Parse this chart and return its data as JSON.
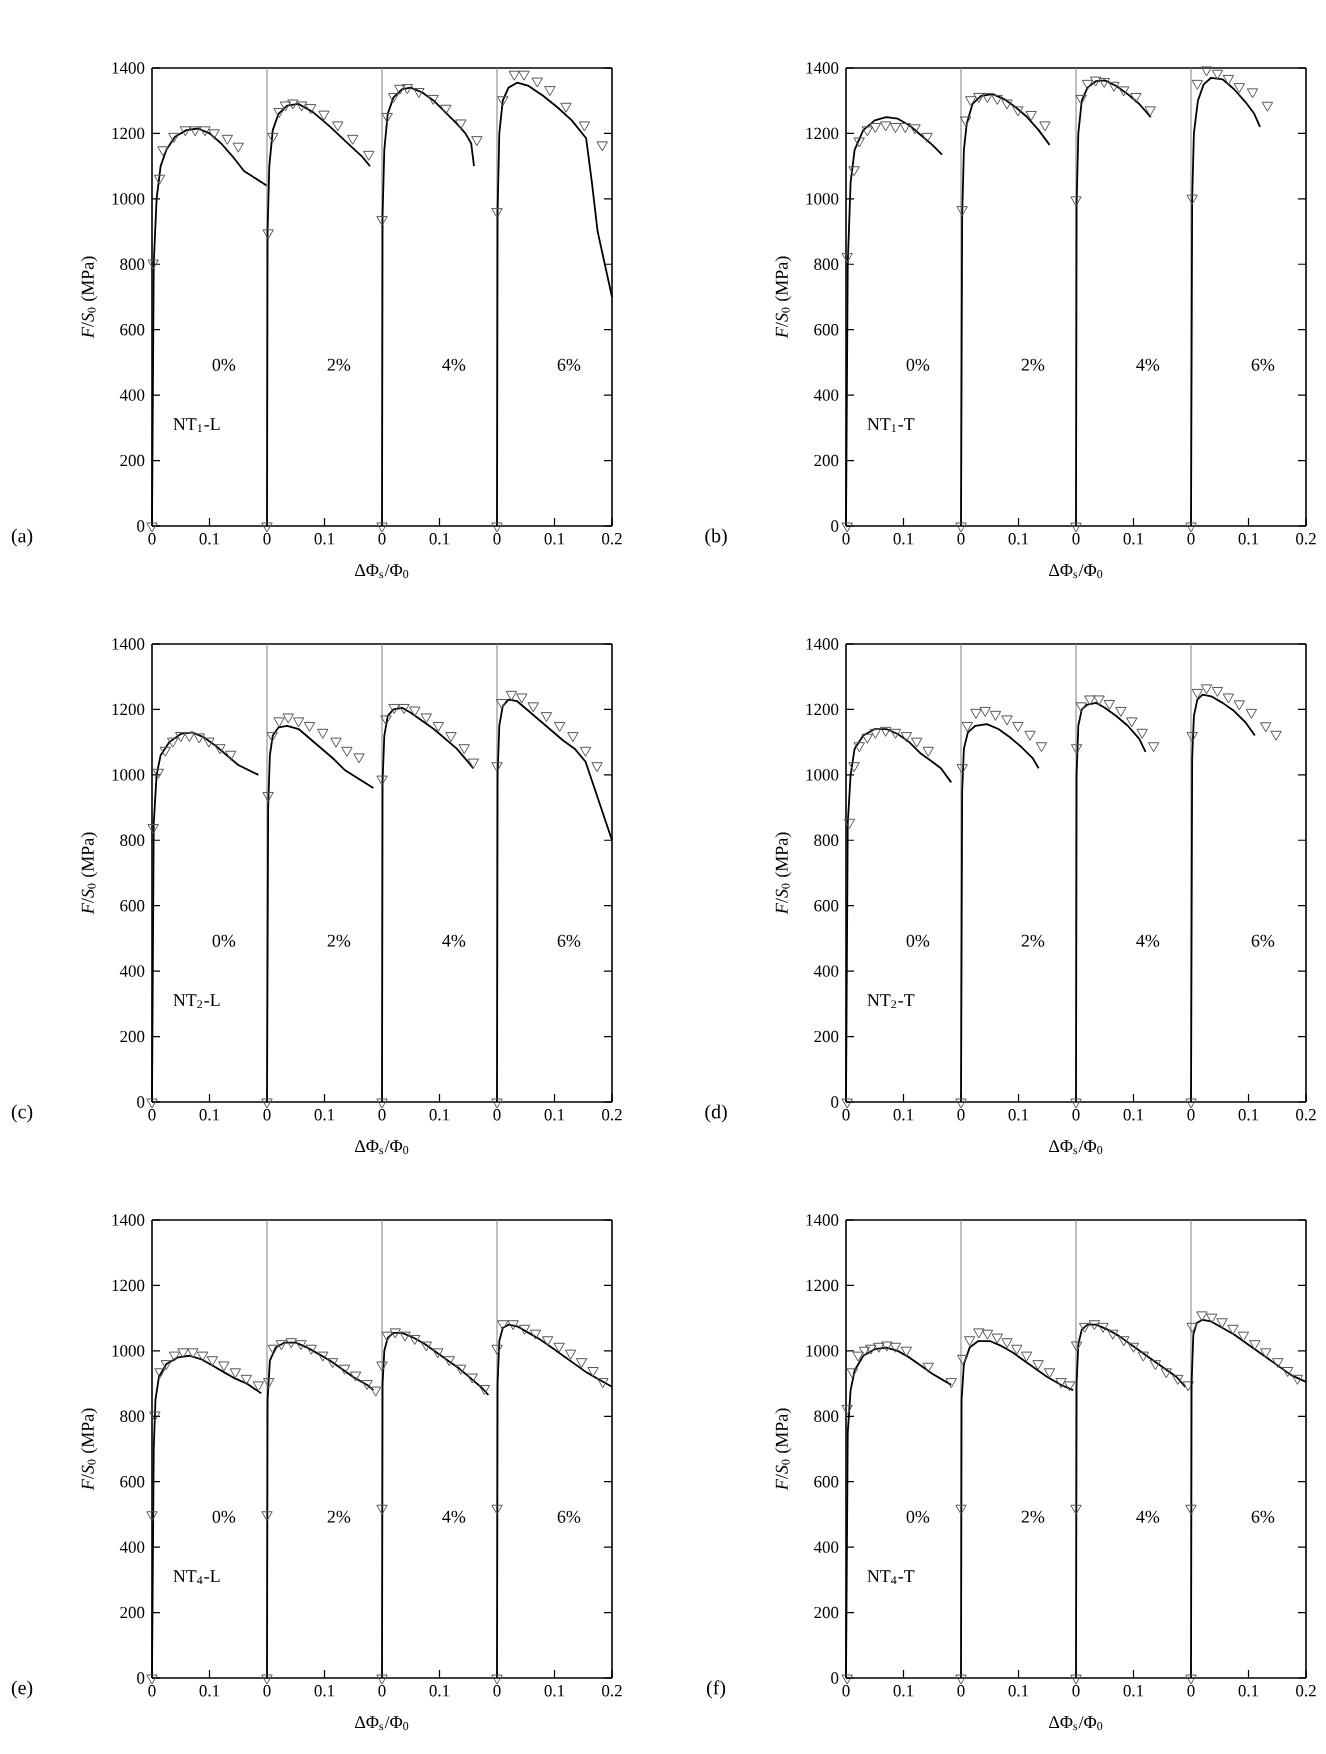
{
  "chart_data": [
    {
      "type": "line",
      "ylabel": "*F*/*S*$_{0}$ (MPa)",
      "annotations": [
        "(a)",
        "NT$_{1}$-L",
        "0%"
      ],
      "xlim": [
        0,
        0.2
      ],
      "ylim": [
        0,
        1400
      ],
      "xticks": [
        0,
        0.1
      ],
      "yticks": [
        0,
        200,
        400,
        600,
        800,
        1000,
        1200,
        1400
      ],
      "series": [
        {
          "color": "#000000",
          "x": [
            0,
            0.003,
            0.008,
            0.015,
            0.025,
            0.04,
            0.06,
            0.08,
            0.1,
            0.12,
            0.14,
            0.16,
            0.2
          ],
          "values": [
            0,
            800,
            1000,
            1100,
            1150,
            1190,
            1210,
            1215,
            1200,
            1170,
            1130,
            1085,
            1040
          ]
        },
        {
          "type": "scatter",
          "color": "#555555",
          "marker": "triangle",
          "x": [
            0,
            0.002,
            0.013,
            0.019,
            0.038,
            0.058,
            0.075,
            0.092,
            0.108,
            0.131,
            0.15
          ],
          "values": [
            0,
            804,
            1063,
            1150,
            1191,
            1211,
            1211,
            1211,
            1202,
            1185,
            1161
          ]
        }
      ]
    },
    {
      "type": "line",
      "xlabel": "ΔΦ$_{s}$/Φ$_{0}$",
      "annotations": [
        "2%"
      ],
      "xlim": [
        0,
        0.2
      ],
      "ylim": [
        0,
        1400
      ],
      "xticks": [
        0,
        0.1
      ],
      "tick_labels": "x",
      "series": [
        {
          "color": "#000000",
          "x": [
            0,
            0.001,
            0.004,
            0.01,
            0.02,
            0.035,
            0.055,
            0.08,
            0.11,
            0.14,
            0.165,
            0.179
          ],
          "values": [
            0,
            900,
            1100,
            1210,
            1260,
            1285,
            1290,
            1265,
            1220,
            1170,
            1130,
            1100
          ]
        },
        {
          "type": "scatter",
          "color": "#555555",
          "marker": "triangle",
          "x": [
            0,
            0.002,
            0.01,
            0.021,
            0.032,
            0.045,
            0.06,
            0.076,
            0.099,
            0.123,
            0.149,
            0.177
          ],
          "values": [
            0,
            896,
            1191,
            1267,
            1287,
            1293,
            1287,
            1279,
            1259,
            1226,
            1185,
            1136
          ]
        }
      ]
    },
    {
      "type": "line",
      "annotations": [
        "4%"
      ],
      "xlim": [
        0,
        0.2
      ],
      "ylim": [
        0,
        1400
      ],
      "xticks": [
        0,
        0.1
      ],
      "tick_labels": "x",
      "series": [
        {
          "color": "#000000",
          "x": [
            0,
            0.001,
            0.004,
            0.01,
            0.02,
            0.035,
            0.05,
            0.07,
            0.09,
            0.11,
            0.13,
            0.145,
            0.155,
            0.16
          ],
          "values": [
            0,
            950,
            1150,
            1260,
            1310,
            1335,
            1340,
            1325,
            1300,
            1265,
            1230,
            1200,
            1170,
            1100
          ]
        },
        {
          "type": "scatter",
          "color": "#555555",
          "marker": "triangle",
          "x": [
            0,
            0,
            0.009,
            0.02,
            0.031,
            0.044,
            0.064,
            0.089,
            0.111,
            0.137,
            0.165
          ],
          "values": [
            0,
            937,
            1252,
            1313,
            1338,
            1340,
            1328,
            1307,
            1277,
            1232,
            1181
          ]
        }
      ]
    },
    {
      "type": "line",
      "annotations": [
        "6%"
      ],
      "xlim": [
        0,
        0.2
      ],
      "ylim": [
        0,
        1400
      ],
      "xticks": [
        0,
        0.1,
        0.2
      ],
      "tick_labels": "x",
      "yticks": [
        {
          "value": 0,
          "label": null
        },
        {
          "value": 200,
          "label": null
        },
        {
          "value": 400,
          "label": null
        },
        {
          "value": 600,
          "label": null
        },
        {
          "value": 800,
          "label": null
        },
        {
          "value": 1000,
          "label": null
        },
        {
          "value": 1200,
          "label": null
        },
        {
          "value": 1400,
          "label": null
        }
      ],
      "series": [
        {
          "color": "#000000",
          "x": [
            0,
            0.001,
            0.004,
            0.01,
            0.02,
            0.035,
            0.055,
            0.08,
            0.105,
            0.13,
            0.155,
            0.165,
            0.175,
            0.2
          ],
          "values": [
            0,
            960,
            1200,
            1300,
            1340,
            1355,
            1345,
            1315,
            1280,
            1240,
            1185,
            1050,
            900,
            700
          ]
        },
        {
          "type": "scatter",
          "color": "#555555",
          "marker": "triangle",
          "x": [
            0,
            0,
            0.01,
            0.03,
            0.047,
            0.07,
            0.092,
            0.12,
            0.152,
            0.183
          ],
          "values": [
            0,
            961,
            1303,
            1381,
            1381,
            1360,
            1334,
            1283,
            1226,
            1165
          ]
        }
      ]
    },
    {
      "type": "line",
      "ylabel": "*F*/*S*$_{0}$ (MPa)",
      "annotations": [
        "(b)",
        "NT$_{1}$-T",
        "0%"
      ],
      "xlim": [
        0,
        0.2
      ],
      "ylim": [
        0,
        1400
      ],
      "xticks": [
        0,
        0.1
      ],
      "yticks": [
        0,
        200,
        400,
        600,
        800,
        1000,
        1200,
        1400
      ],
      "series": [
        {
          "color": "#000000",
          "x": [
            0,
            0.003,
            0.008,
            0.015,
            0.03,
            0.05,
            0.07,
            0.09,
            0.11,
            0.13,
            0.15,
            0.167
          ],
          "values": [
            0,
            800,
            1050,
            1150,
            1210,
            1240,
            1250,
            1245,
            1225,
            1195,
            1165,
            1135
          ]
        },
        {
          "type": "scatter",
          "color": "#555555",
          "marker": "triangle",
          "x": [
            0.002,
            0.002,
            0.014,
            0.023,
            0.037,
            0.051,
            0.069,
            0.086,
            0.103,
            0.12,
            0.141
          ],
          "values": [
            0,
            824,
            1089,
            1177,
            1211,
            1221,
            1226,
            1221,
            1221,
            1217,
            1191
          ]
        }
      ]
    },
    {
      "type": "line",
      "xlabel": "ΔΦ$_{s}$/Φ$_{0}$",
      "annotations": [
        "2%"
      ],
      "xlim": [
        0,
        0.2
      ],
      "ylim": [
        0,
        1400
      ],
      "xticks": [
        0,
        0.1
      ],
      "tick_labels": "x",
      "series": [
        {
          "color": "#000000",
          "x": [
            0,
            0.002,
            0.005,
            0.01,
            0.02,
            0.035,
            0.055,
            0.075,
            0.095,
            0.115,
            0.135,
            0.154
          ],
          "values": [
            0,
            950,
            1150,
            1230,
            1290,
            1315,
            1320,
            1305,
            1280,
            1250,
            1210,
            1165
          ]
        },
        {
          "type": "scatter",
          "color": "#555555",
          "marker": "triangle",
          "x": [
            0,
            0.002,
            0.008,
            0.017,
            0.031,
            0.046,
            0.063,
            0.08,
            0.099,
            0.122,
            0.146
          ],
          "values": [
            0,
            967,
            1241,
            1303,
            1313,
            1313,
            1307,
            1293,
            1272,
            1258,
            1226
          ]
        }
      ]
    },
    {
      "type": "line",
      "annotations": [
        "4%"
      ],
      "xlim": [
        0,
        0.2
      ],
      "ylim": [
        0,
        1400
      ],
      "xticks": [
        0,
        0.1
      ],
      "tick_labels": "x",
      "series": [
        {
          "color": "#000000",
          "x": [
            0,
            0.001,
            0.004,
            0.01,
            0.02,
            0.035,
            0.05,
            0.07,
            0.09,
            0.11,
            0.13
          ],
          "values": [
            0,
            980,
            1200,
            1300,
            1340,
            1360,
            1362,
            1345,
            1320,
            1290,
            1250
          ]
        },
        {
          "type": "scatter",
          "color": "#555555",
          "marker": "triangle",
          "x": [
            0,
            0,
            0.009,
            0.02,
            0.034,
            0.049,
            0.066,
            0.083,
            0.104,
            0.129
          ],
          "values": [
            0,
            997,
            1307,
            1353,
            1363,
            1359,
            1347,
            1333,
            1313,
            1272
          ]
        }
      ]
    },
    {
      "type": "line",
      "annotations": [
        "6%"
      ],
      "xlim": [
        0,
        0.2
      ],
      "ylim": [
        0,
        1400
      ],
      "xticks": [
        0,
        0.1,
        0.2
      ],
      "tick_labels": "x",
      "yticks": [
        {
          "value": 0,
          "label": null
        },
        {
          "value": 200,
          "label": null
        },
        {
          "value": 400,
          "label": null
        },
        {
          "value": 600,
          "label": null
        },
        {
          "value": 800,
          "label": null
        },
        {
          "value": 1000,
          "label": null
        },
        {
          "value": 1200,
          "label": null
        },
        {
          "value": 1400,
          "label": null
        }
      ],
      "series": [
        {
          "color": "#000000",
          "x": [
            0,
            0.002,
            0.005,
            0.012,
            0.022,
            0.035,
            0.055,
            0.075,
            0.095,
            0.11,
            0.12
          ],
          "values": [
            0,
            1000,
            1200,
            1300,
            1350,
            1370,
            1365,
            1335,
            1295,
            1260,
            1220
          ]
        },
        {
          "type": "scatter",
          "color": "#555555",
          "marker": "triangle",
          "x": [
            0,
            0.002,
            0.011,
            0.027,
            0.046,
            0.065,
            0.084,
            0.107,
            0.133
          ],
          "values": [
            0,
            1002,
            1353,
            1394,
            1384,
            1368,
            1343,
            1327,
            1286
          ]
        }
      ]
    },
    {
      "type": "line",
      "ylabel": "*F*/*S*$_{0}$ (MPa)",
      "annotations": [
        "(c)",
        "NT$_{2}$-L",
        "0%"
      ],
      "xlim": [
        0,
        0.2
      ],
      "ylim": [
        0,
        1400
      ],
      "xticks": [
        0,
        0.1
      ],
      "yticks": [
        0,
        200,
        400,
        600,
        800,
        1000,
        1200,
        1400
      ],
      "series": [
        {
          "color": "#000000",
          "x": [
            0,
            0.003,
            0.008,
            0.015,
            0.03,
            0.05,
            0.07,
            0.09,
            0.11,
            0.13,
            0.15,
            0.185
          ],
          "values": [
            0,
            850,
            1000,
            1060,
            1100,
            1125,
            1130,
            1115,
            1090,
            1060,
            1030,
            1000
          ]
        },
        {
          "type": "scatter",
          "color": "#555555",
          "marker": "triangle",
          "x": [
            0,
            0.002,
            0.011,
            0.023,
            0.036,
            0.05,
            0.065,
            0.082,
            0.099,
            0.118,
            0.137
          ],
          "values": [
            0,
            839,
            1008,
            1075,
            1103,
            1120,
            1120,
            1116,
            1103,
            1083,
            1063
          ]
        }
      ]
    },
    {
      "type": "line",
      "xlabel": "ΔΦ$_{s}$/Φ$_{0}$",
      "annotations": [
        "2%"
      ],
      "xlim": [
        0,
        0.2
      ],
      "ylim": [
        0,
        1400
      ],
      "xticks": [
        0,
        0.1
      ],
      "tick_labels": "x",
      "series": [
        {
          "color": "#000000",
          "x": [
            0,
            0.002,
            0.005,
            0.01,
            0.02,
            0.035,
            0.055,
            0.075,
            0.095,
            0.115,
            0.135,
            0.185
          ],
          "values": [
            0,
            900,
            1060,
            1120,
            1145,
            1150,
            1140,
            1110,
            1080,
            1050,
            1015,
            960
          ]
        },
        {
          "type": "scatter",
          "color": "#555555",
          "marker": "triangle",
          "x": [
            0,
            0.002,
            0.009,
            0.021,
            0.037,
            0.055,
            0.074,
            0.097,
            0.12,
            0.139,
            0.16
          ],
          "values": [
            0,
            937,
            1120,
            1165,
            1177,
            1165,
            1151,
            1130,
            1103,
            1075,
            1055
          ]
        }
      ]
    },
    {
      "type": "line",
      "annotations": [
        "4%"
      ],
      "xlim": [
        0,
        0.2
      ],
      "ylim": [
        0,
        1400
      ],
      "xticks": [
        0,
        0.1
      ],
      "tick_labels": "x",
      "series": [
        {
          "color": "#000000",
          "x": [
            0,
            0.001,
            0.004,
            0.01,
            0.02,
            0.035,
            0.05,
            0.07,
            0.09,
            0.11,
            0.13,
            0.159
          ],
          "values": [
            0,
            980,
            1120,
            1180,
            1200,
            1205,
            1190,
            1165,
            1140,
            1110,
            1080,
            1020
          ]
        },
        {
          "type": "scatter",
          "color": "#555555",
          "marker": "triangle",
          "x": [
            0,
            0,
            0.007,
            0.021,
            0.038,
            0.057,
            0.077,
            0.098,
            0.12,
            0.143,
            0.159
          ],
          "values": [
            0,
            987,
            1171,
            1206,
            1206,
            1198,
            1177,
            1151,
            1120,
            1083,
            1039
          ]
        }
      ]
    },
    {
      "type": "line",
      "annotations": [
        "6%"
      ],
      "xlim": [
        0,
        0.2
      ],
      "ylim": [
        0,
        1400
      ],
      "xticks": [
        0,
        0.1,
        0.2
      ],
      "tick_labels": "x",
      "yticks": [
        {
          "value": 0,
          "label": null
        },
        {
          "value": 200,
          "label": null
        },
        {
          "value": 400,
          "label": null
        },
        {
          "value": 600,
          "label": null
        },
        {
          "value": 800,
          "label": null
        },
        {
          "value": 1000,
          "label": null
        },
        {
          "value": 1200,
          "label": null
        },
        {
          "value": 1400,
          "label": null
        }
      ],
      "series": [
        {
          "color": "#000000",
          "x": [
            0,
            0.001,
            0.004,
            0.01,
            0.02,
            0.035,
            0.055,
            0.075,
            0.095,
            0.115,
            0.135,
            0.154,
            0.2
          ],
          "values": [
            0,
            1000,
            1150,
            1210,
            1230,
            1225,
            1195,
            1165,
            1135,
            1105,
            1080,
            1040,
            800
          ]
        },
        {
          "type": "scatter",
          "color": "#555555",
          "marker": "triangle",
          "x": [
            0,
            0,
            0.008,
            0.025,
            0.043,
            0.063,
            0.086,
            0.109,
            0.132,
            0.154,
            0.174
          ],
          "values": [
            0,
            1028,
            1221,
            1246,
            1238,
            1211,
            1181,
            1151,
            1120,
            1075,
            1028
          ]
        }
      ]
    },
    {
      "type": "line",
      "ylabel": "*F*/*S*$_{0}$ (MPa)",
      "annotations": [
        "(d)",
        "NT$_{2}$-T",
        "0%"
      ],
      "xlim": [
        0,
        0.2
      ],
      "ylim": [
        0,
        1400
      ],
      "xticks": [
        0,
        0.1
      ],
      "yticks": [
        0,
        200,
        400,
        600,
        800,
        1000,
        1200,
        1400
      ],
      "series": [
        {
          "color": "#000000",
          "x": [
            0,
            0.003,
            0.008,
            0.015,
            0.03,
            0.05,
            0.07,
            0.09,
            0.11,
            0.13,
            0.15,
            0.165,
            0.183
          ],
          "values": [
            0,
            850,
            1000,
            1080,
            1120,
            1140,
            1140,
            1125,
            1100,
            1065,
            1040,
            1020,
            977
          ]
        },
        {
          "type": "scatter",
          "color": "#555555",
          "marker": "triangle",
          "x": [
            0.002,
            0.006,
            0.014,
            0.023,
            0.037,
            0.051,
            0.069,
            0.086,
            0.105,
            0.123,
            0.143
          ],
          "values": [
            0,
            855,
            1028,
            1089,
            1115,
            1130,
            1136,
            1130,
            1120,
            1103,
            1075
          ]
        }
      ]
    },
    {
      "type": "line",
      "xlabel": "ΔΦ$_{s}$/Φ$_{0}$",
      "annotations": [
        "2%"
      ],
      "xlim": [
        0,
        0.2
      ],
      "ylim": [
        0,
        1400
      ],
      "xticks": [
        0,
        0.1
      ],
      "tick_labels": "x",
      "series": [
        {
          "color": "#000000",
          "x": [
            0,
            0.002,
            0.005,
            0.012,
            0.025,
            0.045,
            0.065,
            0.085,
            0.105,
            0.125,
            0.135
          ],
          "values": [
            0,
            950,
            1080,
            1130,
            1150,
            1155,
            1140,
            1115,
            1085,
            1050,
            1020
          ]
        },
        {
          "type": "scatter",
          "color": "#555555",
          "marker": "triangle",
          "x": [
            0,
            0.002,
            0.011,
            0.026,
            0.042,
            0.06,
            0.08,
            0.099,
            0.12,
            0.14
          ],
          "values": [
            0,
            1022,
            1151,
            1191,
            1197,
            1185,
            1171,
            1151,
            1124,
            1089
          ]
        }
      ]
    },
    {
      "type": "line",
      "annotations": [
        "4%"
      ],
      "xlim": [
        0,
        0.2
      ],
      "ylim": [
        0,
        1400
      ],
      "xticks": [
        0,
        0.1
      ],
      "tick_labels": "x",
      "series": [
        {
          "color": "#000000",
          "x": [
            0,
            0.001,
            0.004,
            0.01,
            0.02,
            0.035,
            0.05,
            0.07,
            0.09,
            0.11,
            0.121
          ],
          "values": [
            0,
            1000,
            1150,
            1200,
            1215,
            1220,
            1205,
            1180,
            1150,
            1110,
            1070
          ]
        },
        {
          "type": "scatter",
          "color": "#555555",
          "marker": "triangle",
          "x": [
            0,
            0.001,
            0.009,
            0.024,
            0.04,
            0.058,
            0.078,
            0.097,
            0.115,
            0.135
          ],
          "values": [
            0,
            1083,
            1211,
            1232,
            1232,
            1218,
            1197,
            1165,
            1130,
            1089
          ]
        }
      ]
    },
    {
      "type": "line",
      "annotations": [
        "6%"
      ],
      "xlim": [
        0,
        0.2
      ],
      "ylim": [
        0,
        1400
      ],
      "xticks": [
        0,
        0.1,
        0.2
      ],
      "tick_labels": "x",
      "yticks": [
        {
          "value": 0,
          "label": null
        },
        {
          "value": 200,
          "label": null
        },
        {
          "value": 400,
          "label": null
        },
        {
          "value": 600,
          "label": null
        },
        {
          "value": 800,
          "label": null
        },
        {
          "value": 1000,
          "label": null
        },
        {
          "value": 1200,
          "label": null
        },
        {
          "value": 1400,
          "label": null
        }
      ],
      "series": [
        {
          "color": "#000000",
          "x": [
            0,
            0.002,
            0.005,
            0.011,
            0.02,
            0.035,
            0.055,
            0.075,
            0.095,
            0.111
          ],
          "values": [
            0,
            1050,
            1180,
            1230,
            1245,
            1240,
            1220,
            1195,
            1160,
            1120
          ]
        },
        {
          "type": "scatter",
          "color": "#555555",
          "marker": "triangle",
          "x": [
            0,
            0.002,
            0.011,
            0.027,
            0.046,
            0.065,
            0.084,
            0.105,
            0.13,
            0.148
          ],
          "values": [
            0,
            1120,
            1252,
            1266,
            1258,
            1238,
            1217,
            1191,
            1150,
            1124
          ]
        }
      ]
    },
    {
      "type": "line",
      "ylabel": "*F*/*S*$_{0}$ (MPa)",
      "annotations": [
        "(e)",
        "NT$_{4}$-L",
        "0%"
      ],
      "xlim": [
        0,
        0.2
      ],
      "ylim": [
        0,
        1400
      ],
      "xticks": [
        0,
        0.1
      ],
      "yticks": [
        0,
        200,
        400,
        600,
        800,
        1000,
        1200,
        1400
      ],
      "series": [
        {
          "color": "#000000",
          "x": [
            0,
            0.003,
            0.006,
            0.012,
            0.025,
            0.045,
            0.065,
            0.085,
            0.105,
            0.125,
            0.145,
            0.165,
            0.19
          ],
          "values": [
            0,
            700,
            850,
            920,
            960,
            980,
            985,
            975,
            955,
            935,
            915,
            900,
            870
          ]
        },
        {
          "type": "scatter",
          "color": "#555555",
          "marker": "triangle",
          "x": [
            0,
            0,
            0.005,
            0.014,
            0.025,
            0.039,
            0.054,
            0.071,
            0.088,
            0.105,
            0.125,
            0.145,
            0.164,
            0.185
          ],
          "values": [
            0,
            499,
            804,
            936,
            961,
            987,
            997,
            997,
            987,
            973,
            957,
            936,
            916,
            896
          ]
        }
      ]
    },
    {
      "type": "line",
      "xlabel": "ΔΦ$_{s}$/Φ$_{0}$",
      "annotations": [
        "2%"
      ],
      "xlim": [
        0,
        0.2
      ],
      "ylim": [
        0,
        1400
      ],
      "xticks": [
        0,
        0.1
      ],
      "tick_labels": "x",
      "series": [
        {
          "color": "#000000",
          "x": [
            0,
            0.001,
            0.005,
            0.015,
            0.03,
            0.05,
            0.07,
            0.09,
            0.11,
            0.13,
            0.15,
            0.175,
            0.185
          ],
          "values": [
            0,
            850,
            970,
            1010,
            1025,
            1025,
            1010,
            990,
            970,
            945,
            920,
            895,
            880
          ]
        },
        {
          "type": "scatter",
          "color": "#555555",
          "marker": "triangle",
          "x": [
            0,
            0,
            0.003,
            0.011,
            0.025,
            0.042,
            0.059,
            0.077,
            0.097,
            0.114,
            0.135,
            0.154,
            0.174,
            0.189
          ],
          "values": [
            0,
            499,
            906,
            1008,
            1022,
            1028,
            1022,
            1008,
            987,
            967,
            947,
            926,
            900,
            880
          ]
        }
      ]
    },
    {
      "type": "line",
      "annotations": [
        "4%"
      ],
      "xlim": [
        0,
        0.2
      ],
      "ylim": [
        0,
        1400
      ],
      "xticks": [
        0,
        0.1
      ],
      "tick_labels": "x",
      "series": [
        {
          "color": "#000000",
          "x": [
            0,
            0.001,
            0.004,
            0.01,
            0.02,
            0.035,
            0.055,
            0.075,
            0.095,
            0.115,
            0.135,
            0.155,
            0.175,
            0.185
          ],
          "values": [
            0,
            900,
            1000,
            1040,
            1055,
            1055,
            1040,
            1020,
            995,
            970,
            945,
            915,
            885,
            865
          ]
        },
        {
          "type": "scatter",
          "color": "#555555",
          "marker": "triangle",
          "x": [
            0,
            0,
            0,
            0.009,
            0.023,
            0.04,
            0.057,
            0.077,
            0.097,
            0.117,
            0.137,
            0.157,
            0.178
          ],
          "values": [
            0,
            519,
            957,
            1048,
            1058,
            1048,
            1038,
            1018,
            997,
            973,
            947,
            920,
            885
          ]
        }
      ]
    },
    {
      "type": "line",
      "annotations": [
        "6%"
      ],
      "xlim": [
        0,
        0.2
      ],
      "ylim": [
        0,
        1400
      ],
      "xticks": [
        0,
        0.1,
        0.2
      ],
      "tick_labels": "x",
      "yticks": [
        {
          "value": 0,
          "label": null
        },
        {
          "value": 200,
          "label": null
        },
        {
          "value": 400,
          "label": null
        },
        {
          "value": 600,
          "label": null
        },
        {
          "value": 800,
          "label": null
        },
        {
          "value": 1000,
          "label": null
        },
        {
          "value": 1200,
          "label": null
        },
        {
          "value": 1400,
          "label": null
        }
      ],
      "series": [
        {
          "color": "#000000",
          "x": [
            0,
            0.001,
            0.004,
            0.01,
            0.02,
            0.035,
            0.055,
            0.075,
            0.095,
            0.115,
            0.135,
            0.155,
            0.175,
            0.2
          ],
          "values": [
            0,
            900,
            1030,
            1070,
            1080,
            1075,
            1055,
            1035,
            1010,
            985,
            960,
            935,
            915,
            890
          ]
        },
        {
          "type": "scatter",
          "color": "#555555",
          "marker": "triangle",
          "x": [
            0,
            0,
            0,
            0.01,
            0.028,
            0.048,
            0.067,
            0.088,
            0.108,
            0.128,
            0.147,
            0.167,
            0.184
          ],
          "values": [
            0,
            519,
            1008,
            1083,
            1083,
            1069,
            1054,
            1034,
            1014,
            993,
            967,
            940,
            906
          ]
        }
      ]
    },
    {
      "type": "line",
      "ylabel": "*F*/*S*$_{0}$ (MPa)",
      "annotations": [
        "(f)",
        "NT$_{4}$-T",
        "0%"
      ],
      "xlim": [
        0,
        0.2
      ],
      "ylim": [
        0,
        1400
      ],
      "xticks": [
        0,
        0.1
      ],
      "yticks": [
        0,
        200,
        400,
        600,
        800,
        1000,
        1200,
        1400
      ],
      "series": [
        {
          "color": "#000000",
          "x": [
            0,
            0.003,
            0.008,
            0.015,
            0.03,
            0.05,
            0.07,
            0.09,
            0.11,
            0.13,
            0.15,
            0.183
          ],
          "values": [
            0,
            750,
            880,
            940,
            985,
            1005,
            1010,
            1000,
            980,
            955,
            930,
            896
          ]
        },
        {
          "type": "scatter",
          "color": "#555555",
          "marker": "triangle",
          "x": [
            0.002,
            0.002,
            0.011,
            0.021,
            0.032,
            0.043,
            0.057,
            0.071,
            0.086,
            0.105,
            0.143,
            0.183
          ],
          "values": [
            0,
            824,
            936,
            987,
            1002,
            1008,
            1014,
            1018,
            1014,
            1002,
            953,
            906
          ]
        }
      ]
    },
    {
      "type": "line",
      "xlabel": "ΔΦ$_{s}$/Φ$_{0}$",
      "annotations": [
        "2%"
      ],
      "xlim": [
        0,
        0.2
      ],
      "ylim": [
        0,
        1400
      ],
      "xticks": [
        0,
        0.1
      ],
      "tick_labels": "x",
      "series": [
        {
          "color": "#000000",
          "x": [
            0,
            0.001,
            0.005,
            0.015,
            0.03,
            0.05,
            0.07,
            0.09,
            0.11,
            0.13,
            0.15,
            0.175,
            0.195
          ],
          "values": [
            0,
            850,
            960,
            1010,
            1030,
            1030,
            1015,
            995,
            970,
            945,
            920,
            895,
            880
          ]
        },
        {
          "type": "scatter",
          "color": "#555555",
          "marker": "triangle",
          "x": [
            0,
            0,
            0.003,
            0.015,
            0.031,
            0.046,
            0.063,
            0.08,
            0.097,
            0.114,
            0.134,
            0.154,
            0.174,
            0.189
          ],
          "values": [
            0,
            519,
            977,
            1034,
            1058,
            1054,
            1042,
            1028,
            1008,
            987,
            961,
            936,
            906,
            896
          ]
        }
      ]
    },
    {
      "type": "line",
      "annotations": [
        "4%"
      ],
      "xlim": [
        0,
        0.2
      ],
      "ylim": [
        0,
        1400
      ],
      "xticks": [
        0,
        0.1
      ],
      "tick_labels": "x",
      "series": [
        {
          "color": "#000000",
          "x": [
            0,
            0.001,
            0.004,
            0.01,
            0.02,
            0.035,
            0.055,
            0.075,
            0.095,
            0.115,
            0.135,
            0.155,
            0.175,
            0.19
          ],
          "values": [
            0,
            900,
            1020,
            1065,
            1080,
            1080,
            1065,
            1045,
            1020,
            995,
            970,
            945,
            920,
            890
          ]
        },
        {
          "type": "scatter",
          "color": "#555555",
          "marker": "triangle",
          "x": [
            0,
            0,
            0.001,
            0.015,
            0.032,
            0.047,
            0.064,
            0.083,
            0.1,
            0.117,
            0.138,
            0.157,
            0.177,
            0.195
          ],
          "values": [
            0,
            519,
            1018,
            1075,
            1083,
            1075,
            1054,
            1034,
            1014,
            987,
            961,
            936,
            916,
            896
          ]
        }
      ]
    },
    {
      "type": "line",
      "annotations": [
        "6%"
      ],
      "xlim": [
        0,
        0.2
      ],
      "ylim": [
        0,
        1400
      ],
      "xticks": [
        0,
        0.1,
        0.2
      ],
      "tick_labels": "x",
      "yticks": [
        {
          "value": 0,
          "label": null
        },
        {
          "value": 200,
          "label": null
        },
        {
          "value": 400,
          "label": null
        },
        {
          "value": 600,
          "label": null
        },
        {
          "value": 800,
          "label": null
        },
        {
          "value": 1000,
          "label": null
        },
        {
          "value": 1200,
          "label": null
        },
        {
          "value": 1400,
          "label": null
        }
      ],
      "series": [
        {
          "color": "#000000",
          "x": [
            0,
            0.001,
            0.004,
            0.01,
            0.02,
            0.035,
            0.055,
            0.075,
            0.095,
            0.115,
            0.135,
            0.155,
            0.175,
            0.2
          ],
          "values": [
            0,
            900,
            1050,
            1085,
            1095,
            1090,
            1070,
            1050,
            1025,
            1000,
            975,
            950,
            925,
            905
          ]
        },
        {
          "type": "scatter",
          "color": "#555555",
          "marker": "triangle",
          "x": [
            0,
            0,
            0.002,
            0.019,
            0.036,
            0.054,
            0.073,
            0.091,
            0.111,
            0.13,
            0.151,
            0.168,
            0.185
          ],
          "values": [
            0,
            519,
            1075,
            1110,
            1103,
            1089,
            1069,
            1048,
            1022,
            997,
            967,
            940,
            916
          ]
        }
      ]
    }
  ]
}
